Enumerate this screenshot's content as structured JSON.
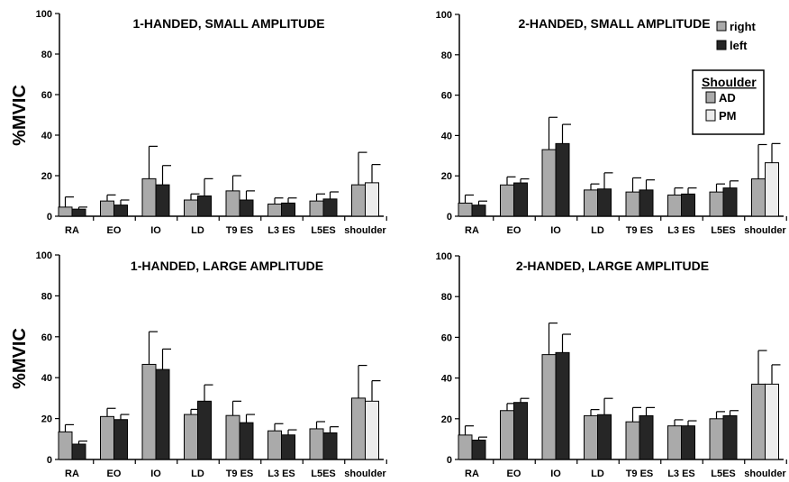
{
  "chart_data": [
    {
      "type": "bar",
      "title": "1-HANDED,  SMALL AMPLITUDE",
      "ylabel": "%MVIC",
      "ylim": [
        0,
        100
      ],
      "yticks": [
        "0",
        "20",
        "40",
        "60",
        "80",
        "100"
      ],
      "categories": [
        "RA",
        "EO",
        "IO",
        "LD",
        "T9 ES",
        "L3 ES",
        "L5ES",
        "shoulder"
      ],
      "series": [
        {
          "name": "right",
          "values": [
            4.5,
            7.5,
            18.5,
            8,
            12.5,
            6,
            7.5,
            15.5
          ],
          "errors": [
            5,
            3,
            16,
            3,
            7.5,
            3,
            3.5,
            16
          ]
        },
        {
          "name": "left",
          "values": [
            3.5,
            5.5,
            15.5,
            10,
            8,
            6.5,
            8.5,
            16.5
          ],
          "errors": [
            1,
            2.5,
            9.5,
            8.5,
            4.5,
            2.5,
            3.5,
            9
          ]
        }
      ],
      "shoulder_series": [
        "AD",
        "PM"
      ]
    },
    {
      "type": "bar",
      "title": "2-HANDED,  SMALL AMPLITUDE",
      "ylabel": "",
      "ylim": [
        0,
        100
      ],
      "yticks": [
        "0",
        "20",
        "40",
        "60",
        "80",
        "100"
      ],
      "categories": [
        "RA",
        "EO",
        "IO",
        "LD",
        "T9 ES",
        "L3 ES",
        "L5ES",
        "shoulder"
      ],
      "series": [
        {
          "name": "right",
          "values": [
            6.5,
            15.5,
            33,
            13,
            12,
            10.5,
            12,
            18.5
          ],
          "errors": [
            4,
            4,
            16,
            3,
            7,
            3.5,
            4,
            17
          ]
        },
        {
          "name": "left",
          "values": [
            5.5,
            16.5,
            36,
            13.5,
            13,
            11,
            14,
            26.5
          ],
          "errors": [
            2,
            2,
            9.5,
            8,
            5,
            3,
            3.5,
            9.5
          ]
        }
      ],
      "shoulder_series": [
        "AD",
        "PM"
      ]
    },
    {
      "type": "bar",
      "title": "1-HANDED,  LARGE AMPLITUDE",
      "ylabel": "%MVIC",
      "ylim": [
        0,
        100
      ],
      "yticks": [
        "0",
        "20",
        "40",
        "60",
        "80",
        "100"
      ],
      "categories": [
        "RA",
        "EO",
        "IO",
        "LD",
        "T9 ES",
        "L3 ES",
        "L5ES",
        "shoulder"
      ],
      "series": [
        {
          "name": "right",
          "values": [
            13.5,
            21,
            46.5,
            22,
            21.5,
            14,
            15,
            30
          ],
          "errors": [
            3.5,
            4,
            16,
            2.5,
            7,
            3.5,
            3.5,
            16
          ]
        },
        {
          "name": "left",
          "values": [
            7.5,
            19.5,
            44,
            28.5,
            18,
            12,
            13,
            28.5
          ],
          "errors": [
            1.5,
            2.5,
            10,
            8,
            4,
            2.5,
            3,
            10
          ]
        }
      ],
      "shoulder_series": [
        "AD",
        "PM"
      ]
    },
    {
      "type": "bar",
      "title": "2-HANDED,  LARGE AMPLITUDE",
      "ylabel": "",
      "ylim": [
        0,
        100
      ],
      "yticks": [
        "0",
        "20",
        "40",
        "60",
        "80",
        "100"
      ],
      "categories": [
        "RA",
        "EO",
        "IO",
        "LD",
        "T9 ES",
        "L3 ES",
        "L5ES",
        "shoulder"
      ],
      "series": [
        {
          "name": "right",
          "values": [
            12,
            24,
            51.5,
            21.5,
            18.5,
            16.5,
            20,
            37
          ],
          "errors": [
            4.5,
            3.5,
            15.5,
            3,
            7,
            3,
            3.5,
            16.5
          ]
        },
        {
          "name": "left",
          "values": [
            9.5,
            28,
            52.5,
            22,
            21.5,
            16.5,
            21.5,
            37
          ],
          "errors": [
            1.5,
            2,
            9,
            8,
            4,
            2.5,
            2.5,
            9.5
          ]
        }
      ],
      "shoulder_series": [
        "AD",
        "PM"
      ]
    }
  ],
  "legend": {
    "items": [
      {
        "label": "right",
        "color": "#aaaaaa"
      },
      {
        "label": "left",
        "color": "#262626"
      }
    ],
    "shoulder": {
      "title": "Shoulder",
      "items": [
        {
          "label": "AD",
          "color": "#aaaaaa"
        },
        {
          "label": "PM",
          "color": "#ececec"
        }
      ]
    }
  }
}
